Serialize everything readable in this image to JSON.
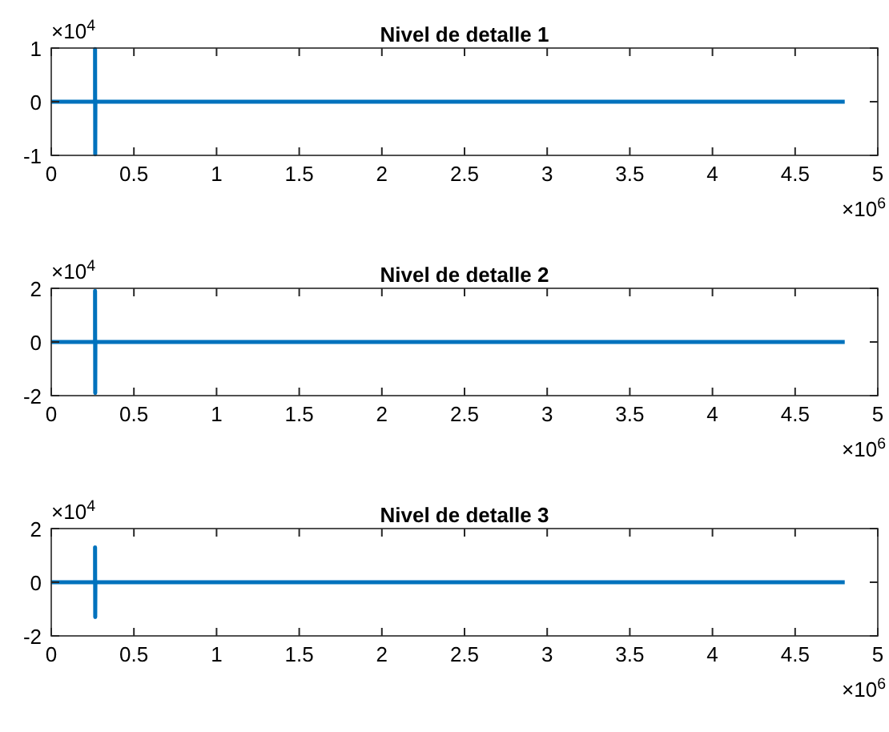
{
  "chart_data": [
    {
      "type": "line",
      "title": "Nivel de detalle 1",
      "x": [
        0,
        0.265,
        0.265,
        0.266,
        0.267,
        4.8
      ],
      "series": [
        {
          "color": "#0072bd",
          "values": [
            0,
            0,
            0.98,
            -0.98,
            0,
            0
          ]
        }
      ],
      "xlim": [
        0,
        5
      ],
      "xticks": [
        0,
        0.5,
        1,
        1.5,
        2,
        2.5,
        3,
        3.5,
        4,
        4.5,
        5
      ],
      "ylim": [
        -1,
        1
      ],
      "yticks": [
        -1,
        0,
        1
      ],
      "annotations": [
        "×10$^{4}$",
        "×10$^{6}$"
      ],
      "grid": false
    },
    {
      "type": "line",
      "title": "Nivel de detalle 2",
      "x": [
        0,
        0.265,
        0.265,
        0.266,
        0.267,
        4.8
      ],
      "series": [
        {
          "color": "#0072bd",
          "values": [
            0,
            0,
            1.9,
            -1.9,
            0,
            0
          ]
        }
      ],
      "xlim": [
        0,
        5
      ],
      "xticks": [
        0,
        0.5,
        1,
        1.5,
        2,
        2.5,
        3,
        3.5,
        4,
        4.5,
        5
      ],
      "ylim": [
        -2,
        2
      ],
      "yticks": [
        -2,
        0,
        2
      ],
      "annotations": [
        "×10$^{4}$",
        "×10$^{6}$"
      ],
      "grid": false
    },
    {
      "type": "line",
      "title": "Nivel de detalle 3",
      "x": [
        0,
        0.265,
        0.265,
        0.266,
        0.267,
        4.8
      ],
      "series": [
        {
          "color": "#0072bd",
          "values": [
            0,
            0,
            1.3,
            -1.3,
            0,
            0
          ]
        }
      ],
      "xlim": [
        0,
        5
      ],
      "xticks": [
        0,
        0.5,
        1,
        1.5,
        2,
        2.5,
        3,
        3.5,
        4,
        4.5,
        5
      ],
      "ylim": [
        -2,
        2
      ],
      "yticks": [
        -2,
        0,
        2
      ],
      "annotations": [
        "×10$^{4}$",
        "×10$^{6}$"
      ],
      "grid": false
    }
  ]
}
